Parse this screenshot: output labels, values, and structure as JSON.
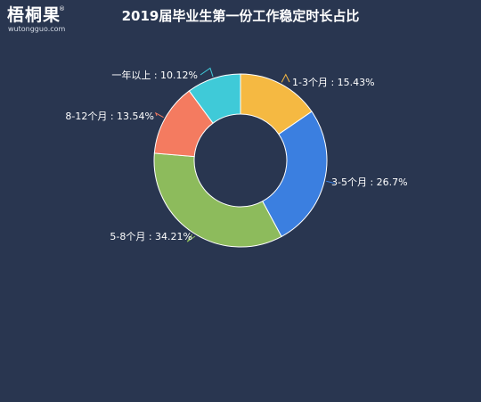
{
  "logo": {
    "name": "梧桐果",
    "registered": "®",
    "site": "wutongguo.com"
  },
  "chart_data": {
    "type": "pie",
    "title": "2019届毕业生第一份工作稳定时长占比",
    "donut": true,
    "slices": [
      {
        "label": "1-3个月",
        "value": 15.43,
        "text": "1-3个月 : 15.43%",
        "color": "#f5b942"
      },
      {
        "label": "3-5个月",
        "value": 26.7,
        "text": "3-5个月 : 26.7%",
        "color": "#3b7fe0"
      },
      {
        "label": "5-8个月",
        "value": 34.21,
        "text": "5-8个月 : 34.21%",
        "color": "#8dbb5c"
      },
      {
        "label": "8-12个月",
        "value": 13.54,
        "text": "8-12个月 : 13.54%",
        "color": "#f47b60"
      },
      {
        "label": "一年以上",
        "value": 10.12,
        "text": "一年以上 : 10.12%",
        "color": "#3fcad8"
      }
    ]
  }
}
